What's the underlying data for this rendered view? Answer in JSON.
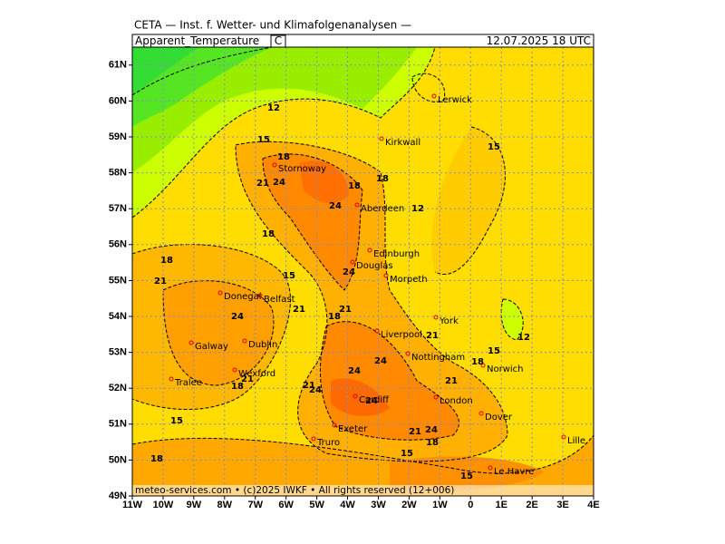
{
  "header": {
    "institute": "CETA — Inst. f. Wetter- und Klimafolgenanalysen —",
    "parameter": "Apparent_Temperature",
    "unit": "C",
    "valid": "12.07.2025  18 UTC"
  },
  "map": {
    "lat_ticks": [
      {
        "value": 61,
        "label": "61N"
      },
      {
        "value": 60,
        "label": "60N"
      },
      {
        "value": 59,
        "label": "59N"
      },
      {
        "value": 58,
        "label": "58N"
      },
      {
        "value": 57,
        "label": "57N"
      },
      {
        "value": 56,
        "label": "56N"
      },
      {
        "value": 55,
        "label": "55N"
      },
      {
        "value": 54,
        "label": "54N"
      },
      {
        "value": 53,
        "label": "53N"
      },
      {
        "value": 52,
        "label": "52N"
      },
      {
        "value": 51,
        "label": "51N"
      },
      {
        "value": 50,
        "label": "50N"
      },
      {
        "value": 49,
        "label": "49N"
      }
    ],
    "lon_ticks": [
      {
        "value": -11,
        "label": "11W"
      },
      {
        "value": -10,
        "label": "10W"
      },
      {
        "value": -9,
        "label": "9W"
      },
      {
        "value": -8,
        "label": "8W"
      },
      {
        "value": -7,
        "label": "7W"
      },
      {
        "value": -6,
        "label": "6W"
      },
      {
        "value": -5,
        "label": "5W"
      },
      {
        "value": -4,
        "label": "4W"
      },
      {
        "value": -3,
        "label": "3W"
      },
      {
        "value": -2,
        "label": "2W"
      },
      {
        "value": -1,
        "label": "1W"
      },
      {
        "value": 0,
        "label": "0"
      },
      {
        "value": 1,
        "label": "1E"
      },
      {
        "value": 2,
        "label": "2E"
      },
      {
        "value": 3,
        "label": "3E"
      },
      {
        "value": 4,
        "label": "4E"
      }
    ],
    "cities": [
      "Lerwick",
      "Kirkwall",
      "Stornoway",
      "Aberdeen",
      "Edinburgh",
      "Douglas",
      "Morpeth",
      "Donegal",
      "Belfast",
      "York",
      "Galway",
      "Dublin",
      "Liverpool",
      "Nottingham",
      "Norwich",
      "Wexford",
      "Tralee",
      "Cardiff",
      "London",
      "Dover",
      "Exeter",
      "Truro",
      "Le Havre",
      "Lille"
    ],
    "contour_labels": [
      12,
      15,
      18,
      21,
      24,
      18,
      18,
      12,
      24,
      15,
      18,
      18,
      21,
      15,
      24,
      21,
      21,
      18,
      24,
      21,
      24,
      15,
      18,
      12,
      24,
      21,
      18,
      21,
      21,
      24,
      24,
      15,
      21,
      24,
      18,
      15,
      18,
      15
    ]
  },
  "footer": "meteo-services.com • (c)2025 IWKF • All rights reserved (12+006)"
}
